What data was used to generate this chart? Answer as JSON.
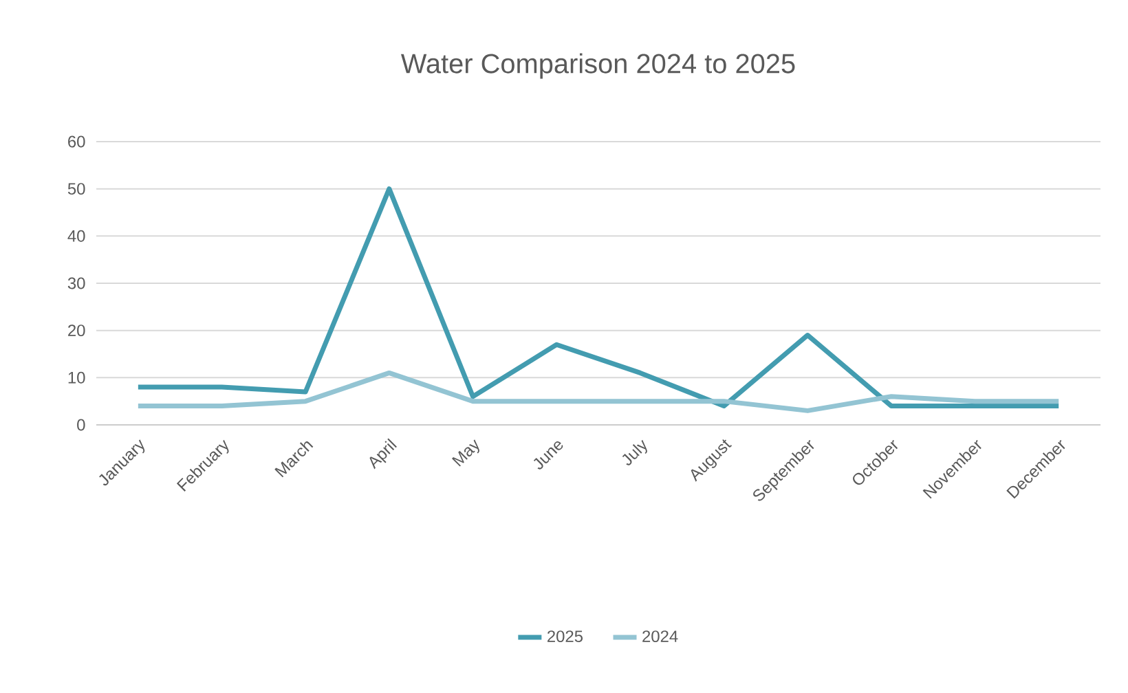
{
  "chart_data": {
    "type": "line",
    "title": "Water Comparison 2024 to 2025",
    "categories": [
      "January",
      "February",
      "March",
      "April",
      "May",
      "June",
      "July",
      "August",
      "September",
      "October",
      "November",
      "December"
    ],
    "series": [
      {
        "name": "2025",
        "color": "#439cb0",
        "values": [
          8,
          8,
          7,
          50,
          6,
          17,
          11,
          4,
          19,
          4,
          4,
          4
        ]
      },
      {
        "name": "2024",
        "color": "#93c4d3",
        "values": [
          4,
          4,
          5,
          11,
          5,
          5,
          5,
          5,
          3,
          6,
          5,
          5
        ]
      }
    ],
    "ylim": [
      0,
      60
    ],
    "yticks": [
      0,
      10,
      20,
      30,
      40,
      50,
      60
    ],
    "grid": "y",
    "legend": "bottom",
    "marker": "none",
    "line_style": "solid"
  }
}
